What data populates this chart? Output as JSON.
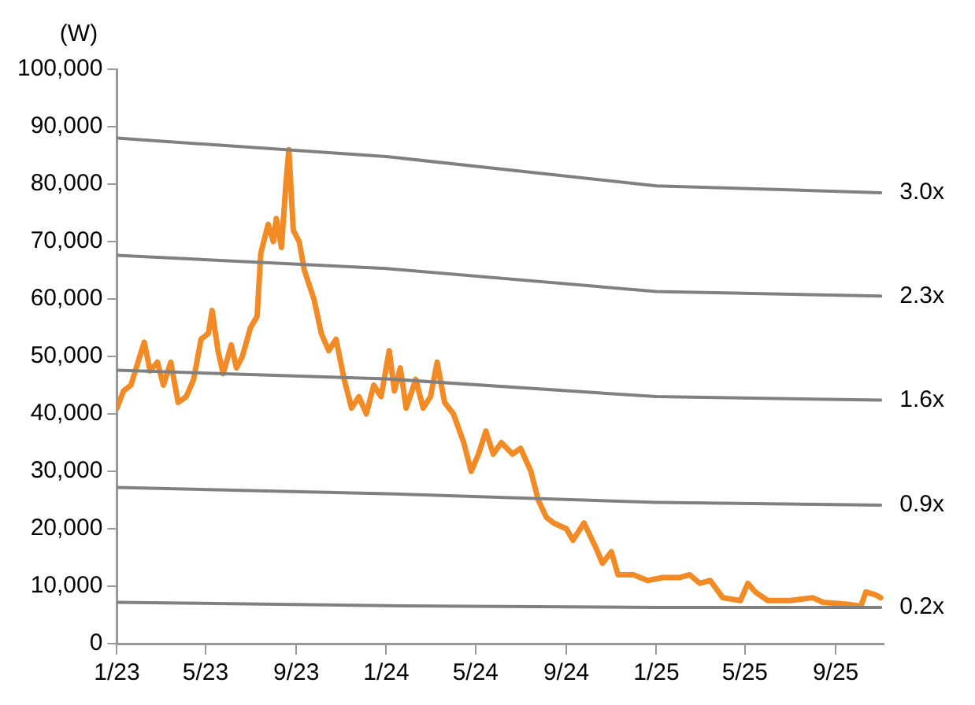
{
  "chart_data": {
    "type": "line",
    "ylabel": "(W)",
    "xlim": [
      "2023-01-01",
      "2025-11-05"
    ],
    "xticks": [
      {
        "value": "2023-01-01",
        "label": "1/23"
      },
      {
        "value": "2023-05-01",
        "label": "5/23"
      },
      {
        "value": "2023-09-01",
        "label": "9/23"
      },
      {
        "value": "2024-01-01",
        "label": "1/24"
      },
      {
        "value": "2024-05-01",
        "label": "5/24"
      },
      {
        "value": "2024-09-01",
        "label": "9/24"
      },
      {
        "value": "2025-01-01",
        "label": "1/25"
      },
      {
        "value": "2025-05-01",
        "label": "5/25"
      },
      {
        "value": "2025-09-01",
        "label": "9/25"
      }
    ],
    "ylim": [
      0,
      100000
    ],
    "yticks": [
      {
        "value": 0,
        "label": "0"
      },
      {
        "value": 10000,
        "label": "10,000"
      },
      {
        "value": 20000,
        "label": "20,000"
      },
      {
        "value": 30000,
        "label": "30,000"
      },
      {
        "value": 40000,
        "label": "40,000"
      },
      {
        "value": 50000,
        "label": "50,000"
      },
      {
        "value": 60000,
        "label": "60,000"
      },
      {
        "value": 70000,
        "label": "70,000"
      },
      {
        "value": 80000,
        "label": "80,000"
      },
      {
        "value": 90000,
        "label": "90,000"
      },
      {
        "value": 100000,
        "label": "100,000"
      }
    ],
    "grid": false,
    "legend": false,
    "marker": "none",
    "line_style": "solid",
    "series": [
      {
        "name": "3.0x",
        "color": "#808080",
        "x": [
          "2023-01-01",
          "2024-01-01",
          "2025-01-01",
          "2025-11-01"
        ],
        "values": [
          88000,
          84800,
          79700,
          78500
        ]
      },
      {
        "name": "2.3x",
        "color": "#808080",
        "x": [
          "2023-01-01",
          "2024-01-01",
          "2025-01-01",
          "2025-11-01"
        ],
        "values": [
          67600,
          65300,
          61300,
          60500
        ]
      },
      {
        "name": "1.6x",
        "color": "#808080",
        "x": [
          "2023-01-01",
          "2024-01-01",
          "2025-01-01",
          "2025-11-01"
        ],
        "values": [
          47600,
          46100,
          43000,
          42400
        ]
      },
      {
        "name": "0.9x",
        "color": "#808080",
        "x": [
          "2023-01-01",
          "2024-01-01",
          "2025-01-01",
          "2025-11-01"
        ],
        "values": [
          27200,
          26100,
          24600,
          24100
        ]
      },
      {
        "name": "0.2x",
        "color": "#808080",
        "x": [
          "2023-01-01",
          "2024-01-01",
          "2025-01-01",
          "2025-11-01"
        ],
        "values": [
          7200,
          6600,
          6300,
          6300
        ]
      },
      {
        "color": "#f28a26",
        "x": [
          "2023-01-01",
          "2023-01-10",
          "2023-01-20",
          "2023-02-01",
          "2023-02-07",
          "2023-02-15",
          "2023-02-25",
          "2023-03-05",
          "2023-03-15",
          "2023-03-25",
          "2023-04-05",
          "2023-04-15",
          "2023-04-25",
          "2023-05-05",
          "2023-05-10",
          "2023-05-18",
          "2023-05-25",
          "2023-06-05",
          "2023-06-12",
          "2023-06-20",
          "2023-07-01",
          "2023-07-10",
          "2023-07-15",
          "2023-07-25",
          "2023-08-01",
          "2023-08-05",
          "2023-08-12",
          "2023-08-18",
          "2023-08-22",
          "2023-08-28",
          "2023-09-05",
          "2023-09-12",
          "2023-09-25",
          "2023-10-05",
          "2023-10-15",
          "2023-10-25",
          "2023-11-05",
          "2023-11-15",
          "2023-11-25",
          "2023-12-05",
          "2023-12-15",
          "2023-12-25",
          "2024-01-05",
          "2024-01-12",
          "2024-01-20",
          "2024-01-28",
          "2024-02-10",
          "2024-02-20",
          "2024-03-01",
          "2024-03-10",
          "2024-03-20",
          "2024-04-01",
          "2024-04-15",
          "2024-04-25",
          "2024-05-05",
          "2024-05-15",
          "2024-05-25",
          "2024-06-05",
          "2024-06-20",
          "2024-07-01",
          "2024-07-15",
          "2024-07-25",
          "2024-08-05",
          "2024-08-15",
          "2024-09-01",
          "2024-09-10",
          "2024-09-25",
          "2024-10-10",
          "2024-10-20",
          "2024-11-01",
          "2024-11-10",
          "2024-12-01",
          "2024-12-20",
          "2025-01-10",
          "2025-02-01",
          "2025-02-15",
          "2025-03-01",
          "2025-03-15",
          "2025-04-01",
          "2025-04-25",
          "2025-05-05",
          "2025-05-15",
          "2025-06-01",
          "2025-07-01",
          "2025-08-01",
          "2025-08-15",
          "2025-09-20",
          "2025-10-05",
          "2025-10-12",
          "2025-10-25",
          "2025-11-01"
        ],
        "values": [
          41000,
          44000,
          45000,
          50000,
          52500,
          47500,
          49000,
          45000,
          49000,
          42000,
          43000,
          46000,
          53000,
          54000,
          58000,
          51000,
          47000,
          52000,
          48000,
          50000,
          55000,
          57000,
          68000,
          73000,
          70000,
          74000,
          69000,
          80000,
          86000,
          72000,
          70000,
          65000,
          60000,
          54000,
          51000,
          53000,
          46000,
          41000,
          43000,
          40000,
          45000,
          43000,
          51000,
          44000,
          48000,
          41000,
          46000,
          41000,
          43000,
          49000,
          42000,
          40000,
          35000,
          30000,
          33000,
          37000,
          33000,
          35000,
          33000,
          34000,
          30000,
          25000,
          22000,
          21000,
          20000,
          18000,
          21000,
          17000,
          14000,
          16000,
          12000,
          12000,
          11000,
          11500,
          11500,
          12000,
          10500,
          11000,
          8000,
          7500,
          10500,
          9000,
          7500,
          7500,
          8000,
          7200,
          6800,
          6500,
          9000,
          8500,
          8000
        ]
      }
    ]
  }
}
